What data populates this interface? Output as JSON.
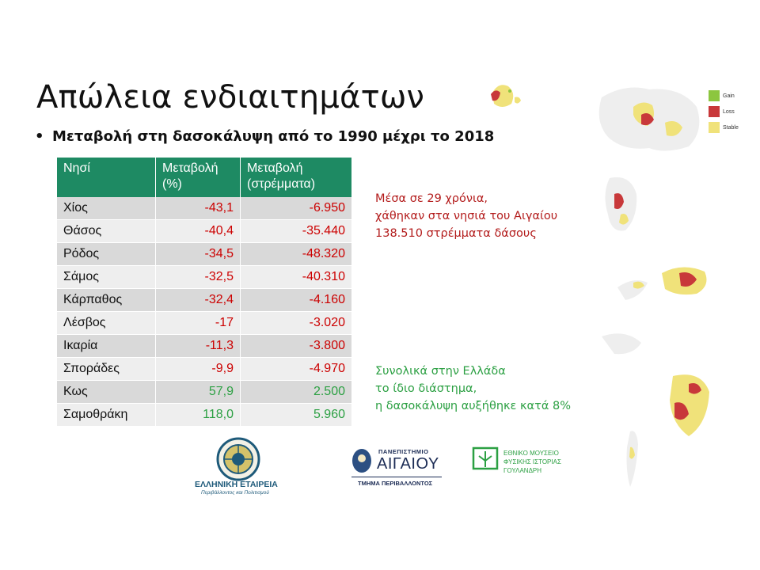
{
  "slide": {
    "title": "Απώλεια ενδιαιτημάτων",
    "bullet": "Μεταβολή στη δασοκάλυψη από το 1990 μέχρι το 2018"
  },
  "table": {
    "headers": {
      "island": "Νησί",
      "pct_line1": "Μεταβολή",
      "pct_line2": "(%)",
      "area_line1": "Μεταβολή",
      "area_line2": "(στρέμματα)"
    },
    "rows": [
      {
        "island": "Χίος",
        "pct": "-43,1",
        "area": "-6.950",
        "trend": "loss"
      },
      {
        "island": "Θάσος",
        "pct": "-40,4",
        "area": "-35.440",
        "trend": "loss"
      },
      {
        "island": "Ρόδος",
        "pct": "-34,5",
        "area": "-48.320",
        "trend": "loss"
      },
      {
        "island": "Σάμος",
        "pct": "-32,5",
        "area": "-40.310",
        "trend": "loss"
      },
      {
        "island": "Κάρπαθος",
        "pct": "-32,4",
        "area": "-4.160",
        "trend": "loss"
      },
      {
        "island": "Λέσβος",
        "pct": "-17",
        "area": "-3.020",
        "trend": "loss"
      },
      {
        "island": "Ικαρία",
        "pct": "-11,3",
        "area": "-3.800",
        "trend": "loss"
      },
      {
        "island": "Σποράδες",
        "pct": "-9,9",
        "area": "-4.970",
        "trend": "loss"
      },
      {
        "island": "Κως",
        "pct": "57,9",
        "area": "2.500",
        "trend": "gain"
      },
      {
        "island": "Σαμοθράκη",
        "pct": "118,0",
        "area": "5.960",
        "trend": "gain"
      }
    ]
  },
  "notes": {
    "red": [
      "Μέσα σε 29 χρόνια,",
      "χάθηκαν στα νησιά του Αιγαίου",
      "138.510 στρέμματα δάσους"
    ],
    "green": [
      "Συνολικά στην Ελλάδα",
      "το ίδιο διάστημα,",
      "η δασοκάλυψη αυξήθηκε κατά 8%"
    ]
  },
  "legend": [
    {
      "label": "Gain",
      "color": "#8cc63f"
    },
    {
      "label": "Loss",
      "color": "#c8383a"
    },
    {
      "label": "Stable",
      "color": "#f0e27a"
    }
  ],
  "colors": {
    "header_green": "#1e8a63",
    "negative": "#cc0000",
    "positive": "#2ca043",
    "note_red": "#b31b1b"
  },
  "logos": {
    "society": {
      "line1": "ΕΛΛΗΝΙΚΗ ΕΤΑΙΡΕΙΑ",
      "line2": "Περιβάλλοντος και Πολιτισμού"
    },
    "university": {
      "line1": "ΠΑΝΕΠΙΣΤΗΜΙΟ",
      "line2": "ΑΙΓΑΙΟΥ",
      "line3": "ΤΜΗΜΑ ΠΕΡΙΒΑΛΛΟΝΤΟΣ"
    },
    "museum": {
      "line1": "ΕΘΝΙΚΟ ΜΟΥΣΕΙΟ",
      "line2": "ΦΥΣΙΚΗΣ ΙΣΤΟΡΙΑΣ",
      "line3": "ΓΟΥΛΑΝΔΡΗ"
    }
  }
}
